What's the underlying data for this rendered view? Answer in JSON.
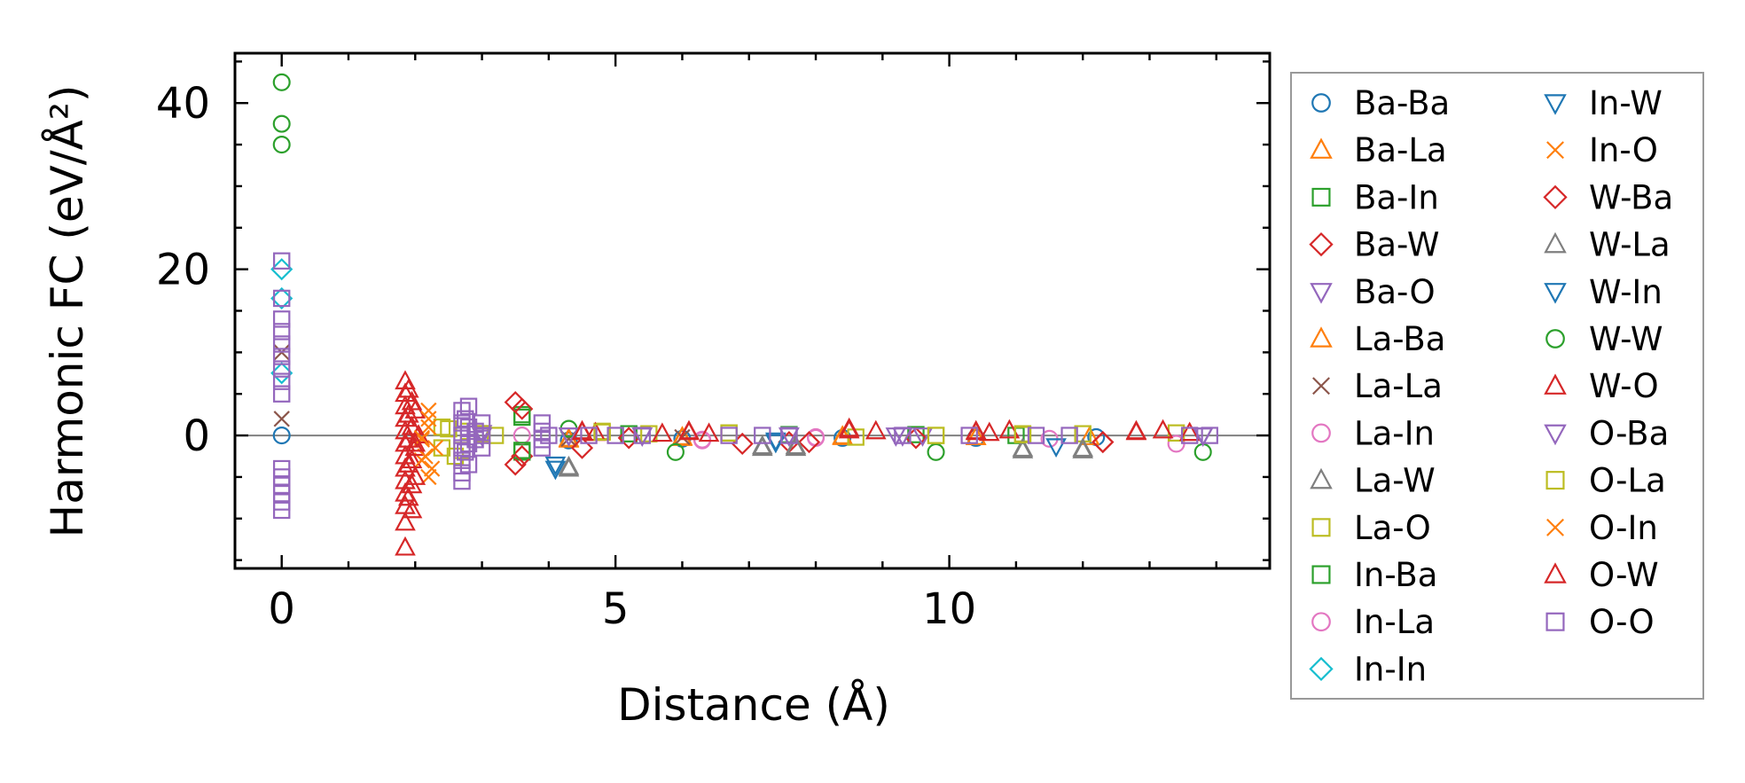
{
  "chart_data": {
    "type": "scatter",
    "title": "",
    "xlabel": "Distance (Å)",
    "ylabel": "Harmonic FC (eV/Å²)",
    "xlim": [
      -0.7,
      14.8
    ],
    "ylim": [
      -16,
      46
    ],
    "xticks": [
      0,
      5,
      10
    ],
    "yticks": [
      0,
      20,
      40
    ],
    "xtick_labels": [
      "0",
      "5",
      "10"
    ],
    "ytick_labels": [
      "0",
      "20",
      "40"
    ],
    "zero_line": true,
    "grid": false,
    "legend": {
      "placement": "outside-right",
      "columns": 2
    },
    "series": [
      {
        "name": "Ba-Ba",
        "marker": "circle",
        "color": "#1f77b4",
        "points": [
          [
            0,
            0
          ],
          [
            4.3,
            -0.6
          ],
          [
            6.0,
            -0.4
          ],
          [
            8.4,
            -0.3
          ],
          [
            10.4,
            -0.3
          ],
          [
            12.2,
            -0.2
          ]
        ]
      },
      {
        "name": "Ba-La",
        "marker": "triangle-up",
        "color": "#ff7f0e",
        "points": [
          [
            4.3,
            -0.5
          ],
          [
            6.0,
            -0.3
          ],
          [
            8.4,
            -0.2
          ],
          [
            10.4,
            -0.2
          ],
          [
            12.1,
            -0.2
          ]
        ]
      },
      {
        "name": "Ba-In",
        "marker": "square",
        "color": "#2ca02c",
        "points": [
          [
            3.6,
            2.5
          ],
          [
            3.6,
            -2.0
          ],
          [
            5.2,
            0.2
          ],
          [
            7.6,
            0.1
          ],
          [
            9.5,
            0.1
          ],
          [
            11.0,
            0.0
          ]
        ]
      },
      {
        "name": "Ba-W",
        "marker": "diamond",
        "color": "#d62728",
        "points": [
          [
            3.6,
            3.2
          ],
          [
            3.6,
            -2.5
          ],
          [
            5.2,
            -0.3
          ],
          [
            7.6,
            -0.8
          ],
          [
            9.5,
            -0.3
          ],
          [
            12.3,
            -0.8
          ]
        ]
      },
      {
        "name": "Ba-O",
        "marker": "triangle-down",
        "color": "#9467bd",
        "points": [
          [
            3.0,
            0.3
          ],
          [
            4.3,
            0.0
          ],
          [
            5.4,
            0.0
          ],
          [
            7.6,
            0.0
          ],
          [
            9.2,
            0.0
          ],
          [
            13.8,
            0.0
          ]
        ]
      },
      {
        "name": "La-Ba",
        "marker": "triangle-up",
        "color": "#ff7f0e",
        "points": [
          [
            4.3,
            -0.4
          ],
          [
            6.0,
            -0.2
          ],
          [
            8.4,
            -0.1
          ],
          [
            10.4,
            -0.2
          ]
        ]
      },
      {
        "name": "La-La",
        "marker": "x",
        "color": "#8c564b",
        "points": [
          [
            0,
            2.0
          ],
          [
            0,
            10.0
          ],
          [
            4.3,
            -0.4
          ],
          [
            6.0,
            -0.2
          ]
        ]
      },
      {
        "name": "La-In",
        "marker": "circle",
        "color": "#e377c2",
        "points": [
          [
            3.6,
            0.0
          ],
          [
            6.3,
            -0.6
          ],
          [
            8.0,
            -0.3
          ],
          [
            11.5,
            -0.4
          ],
          [
            13.4,
            -1.0
          ]
        ]
      },
      {
        "name": "La-W",
        "marker": "triangle-up",
        "color": "#7f7f7f",
        "points": [
          [
            4.3,
            -4.0
          ],
          [
            7.2,
            -1.5
          ],
          [
            7.7,
            -1.5
          ],
          [
            11.1,
            -1.8
          ],
          [
            12.0,
            -1.8
          ]
        ]
      },
      {
        "name": "La-O",
        "marker": "square",
        "color": "#bcbd22",
        "points": [
          [
            2.4,
            1.0
          ],
          [
            2.4,
            -1.5
          ],
          [
            2.6,
            -2.5
          ],
          [
            2.8,
            0.5
          ],
          [
            3.2,
            0.0
          ],
          [
            4.8,
            0.5
          ],
          [
            5.5,
            0.2
          ],
          [
            6.7,
            0.3
          ],
          [
            8.6,
            -0.2
          ],
          [
            9.8,
            0.0
          ],
          [
            11.1,
            0.2
          ],
          [
            12.0,
            0.2
          ],
          [
            13.4,
            0.3
          ]
        ]
      },
      {
        "name": "In-Ba",
        "marker": "square",
        "color": "#2ca02c",
        "points": [
          [
            3.6,
            2.2
          ],
          [
            3.6,
            -1.8
          ]
        ]
      },
      {
        "name": "In-La",
        "marker": "circle",
        "color": "#e377c2",
        "points": [
          [
            6.3,
            -0.5
          ],
          [
            8.0,
            -0.2
          ]
        ]
      },
      {
        "name": "In-In",
        "marker": "diamond",
        "color": "#17becf",
        "points": [
          [
            0,
            20.0
          ],
          [
            0,
            16.5
          ],
          [
            0,
            7.5
          ]
        ]
      },
      {
        "name": "In-W",
        "marker": "triangle-down",
        "color": "#1f77b4",
        "points": [
          [
            4.1,
            -4.0
          ],
          [
            7.4,
            -0.8
          ],
          [
            11.6,
            -1.3
          ]
        ]
      },
      {
        "name": "In-O",
        "marker": "x",
        "color": "#ff7f0e",
        "points": [
          [
            2.1,
            -0.5
          ],
          [
            2.1,
            -3.0
          ],
          [
            2.2,
            -5.0
          ],
          [
            2.2,
            1.0
          ],
          [
            2.2,
            3.0
          ],
          [
            2.3,
            -1.5
          ]
        ]
      },
      {
        "name": "W-Ba",
        "marker": "diamond",
        "color": "#d62728",
        "points": [
          [
            3.5,
            4.0
          ],
          [
            3.5,
            -3.5
          ],
          [
            4.5,
            -1.5
          ],
          [
            6.9,
            -1.0
          ],
          [
            7.9,
            -0.8
          ],
          [
            12.3,
            -0.8
          ]
        ]
      },
      {
        "name": "W-La",
        "marker": "triangle-up",
        "color": "#7f7f7f",
        "points": [
          [
            4.3,
            -3.8
          ],
          [
            7.2,
            -1.3
          ],
          [
            7.7,
            -1.3
          ],
          [
            11.1,
            -1.6
          ],
          [
            12.0,
            -1.6
          ]
        ]
      },
      {
        "name": "W-In",
        "marker": "triangle-down",
        "color": "#1f77b4",
        "points": [
          [
            4.1,
            -3.5
          ],
          [
            7.4,
            -0.6
          ]
        ]
      },
      {
        "name": "W-W",
        "marker": "circle",
        "color": "#2ca02c",
        "points": [
          [
            0,
            42.5
          ],
          [
            0,
            37.5
          ],
          [
            0,
            35.0
          ],
          [
            4.3,
            0.8
          ],
          [
            5.9,
            -2.0
          ],
          [
            9.8,
            -2.0
          ],
          [
            13.8,
            -2.0
          ]
        ]
      },
      {
        "name": "W-O",
        "marker": "triangle-up",
        "color": "#d62728",
        "points": [
          [
            1.85,
            6.5
          ],
          [
            1.85,
            5.0
          ],
          [
            1.85,
            3.5
          ],
          [
            1.85,
            2.0
          ],
          [
            1.85,
            0.5
          ],
          [
            1.85,
            -1.0
          ],
          [
            1.85,
            -2.5
          ],
          [
            1.85,
            -4.0
          ],
          [
            1.85,
            -5.5
          ],
          [
            1.85,
            -7.0
          ],
          [
            1.85,
            -8.5
          ],
          [
            1.85,
            -10.5
          ],
          [
            1.85,
            -13.5
          ],
          [
            1.95,
            4.0
          ],
          [
            1.95,
            1.0
          ],
          [
            1.95,
            -3.0
          ],
          [
            1.95,
            -6.0
          ],
          [
            1.95,
            -9.0
          ],
          [
            2.0,
            3.0
          ],
          [
            2.0,
            -1.5
          ],
          [
            2.0,
            -5.0
          ],
          [
            2.05,
            0.0
          ],
          [
            4.5,
            0.5
          ],
          [
            4.7,
            0.3
          ],
          [
            5.7,
            0.2
          ],
          [
            6.1,
            0.5
          ],
          [
            6.4,
            0.2
          ],
          [
            8.5,
            0.8
          ],
          [
            8.9,
            0.5
          ],
          [
            10.4,
            0.5
          ],
          [
            10.6,
            0.3
          ],
          [
            10.9,
            0.6
          ],
          [
            12.8,
            0.5
          ],
          [
            13.2,
            0.6
          ],
          [
            13.6,
            0.3
          ]
        ]
      },
      {
        "name": "O-Ba",
        "marker": "triangle-down",
        "color": "#9467bd",
        "points": [
          [
            3.0,
            0.0
          ],
          [
            4.3,
            0.0
          ],
          [
            5.4,
            0.0
          ],
          [
            7.6,
            0.0
          ],
          [
            9.3,
            0.0
          ],
          [
            9.6,
            0.0
          ],
          [
            13.8,
            0.0
          ]
        ]
      },
      {
        "name": "O-La",
        "marker": "square",
        "color": "#bcbd22",
        "points": [
          [
            2.5,
            0.8
          ],
          [
            2.7,
            -1.8
          ],
          [
            3.0,
            0.2
          ],
          [
            4.8,
            0.4
          ],
          [
            6.7,
            0.3
          ],
          [
            9.8,
            0.0
          ],
          [
            11.1,
            0.1
          ]
        ]
      },
      {
        "name": "O-In",
        "marker": "x",
        "color": "#ff7f0e",
        "points": [
          [
            2.1,
            -0.3
          ],
          [
            2.15,
            -2.5
          ],
          [
            2.2,
            2.0
          ],
          [
            2.25,
            -4.0
          ]
        ]
      },
      {
        "name": "O-W",
        "marker": "triangle-up",
        "color": "#d62728",
        "points": [
          [
            1.9,
            5.5
          ],
          [
            1.9,
            2.5
          ],
          [
            1.9,
            -0.5
          ],
          [
            1.9,
            -3.5
          ],
          [
            1.9,
            -7.5
          ],
          [
            2.0,
            -1.0
          ],
          [
            4.5,
            0.4
          ],
          [
            6.1,
            0.4
          ],
          [
            8.5,
            0.6
          ],
          [
            10.4,
            0.4
          ],
          [
            12.8,
            0.4
          ]
        ]
      },
      {
        "name": "O-O",
        "marker": "square",
        "color": "#9467bd",
        "points": [
          [
            0,
            21.0
          ],
          [
            0,
            16.5
          ],
          [
            0,
            14.0
          ],
          [
            0,
            12.5
          ],
          [
            0,
            11.0
          ],
          [
            0,
            9.5
          ],
          [
            0,
            8.0
          ],
          [
            0,
            6.5
          ],
          [
            0,
            5.0
          ],
          [
            0,
            -4.0
          ],
          [
            0,
            -5.0
          ],
          [
            0,
            -6.0
          ],
          [
            0,
            -7.0
          ],
          [
            0,
            -8.0
          ],
          [
            0,
            -9.0
          ],
          [
            2.7,
            3.0
          ],
          [
            2.7,
            1.5
          ],
          [
            2.7,
            0.0
          ],
          [
            2.7,
            -1.5
          ],
          [
            2.7,
            -3.0
          ],
          [
            2.7,
            -4.5
          ],
          [
            2.7,
            -5.5
          ],
          [
            2.75,
            2.0
          ],
          [
            2.75,
            -2.0
          ],
          [
            2.8,
            3.5
          ],
          [
            2.8,
            1.0
          ],
          [
            2.8,
            -1.0
          ],
          [
            2.8,
            -3.5
          ],
          [
            2.9,
            0.5
          ],
          [
            2.9,
            -0.5
          ],
          [
            3.0,
            0.0
          ],
          [
            3.0,
            1.5
          ],
          [
            3.0,
            -1.5
          ],
          [
            3.9,
            0.5
          ],
          [
            3.9,
            -0.5
          ],
          [
            3.9,
            1.5
          ],
          [
            3.9,
            -1.5
          ],
          [
            4.0,
            0.0
          ],
          [
            4.6,
            0.0
          ],
          [
            5.0,
            0.0
          ],
          [
            5.4,
            0.0
          ],
          [
            6.7,
            0.0
          ],
          [
            7.2,
            0.0
          ],
          [
            7.6,
            0.0
          ],
          [
            9.3,
            0.0
          ],
          [
            10.3,
            0.0
          ],
          [
            11.3,
            0.0
          ],
          [
            11.8,
            0.0
          ],
          [
            13.6,
            0.0
          ],
          [
            13.9,
            0.0
          ]
        ]
      }
    ]
  }
}
